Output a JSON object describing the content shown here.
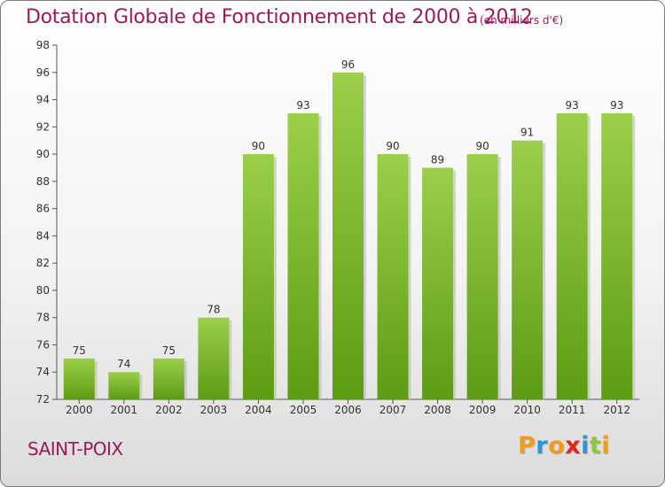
{
  "chart_data": {
    "type": "bar",
    "title": "Dotation Globale de Fonctionnement de 2000 à 2012",
    "subtitle": "(en milliers d'€)",
    "categories": [
      "2000",
      "2001",
      "2002",
      "2003",
      "2004",
      "2005",
      "2006",
      "2007",
      "2008",
      "2009",
      "2010",
      "2011",
      "2012"
    ],
    "values": [
      75,
      74,
      75,
      78,
      90,
      93,
      96,
      90,
      89,
      90,
      91,
      93,
      93
    ],
    "ylim": [
      72,
      98
    ],
    "yticks": [
      72,
      74,
      76,
      78,
      80,
      82,
      84,
      86,
      88,
      90,
      92,
      94,
      96,
      98
    ],
    "xlabel": "",
    "ylabel": "",
    "grid": false,
    "bar_colors": {
      "top": "#9ccf4a",
      "bottom": "#5c9c12"
    }
  },
  "footer": {
    "place": "SAINT-POIX",
    "brand_letters": [
      {
        "ch": "P",
        "color": "#f39c1a"
      },
      {
        "ch": "r",
        "color": "#2f95d6"
      },
      {
        "ch": "o",
        "color": "#f39c1a"
      },
      {
        "ch": "x",
        "color": "#e2261c"
      },
      {
        "ch": "i",
        "color": "#2f95d6"
      },
      {
        "ch": "t",
        "color": "#8cc63f"
      },
      {
        "ch": "i",
        "color": "#f39c1a"
      }
    ]
  }
}
